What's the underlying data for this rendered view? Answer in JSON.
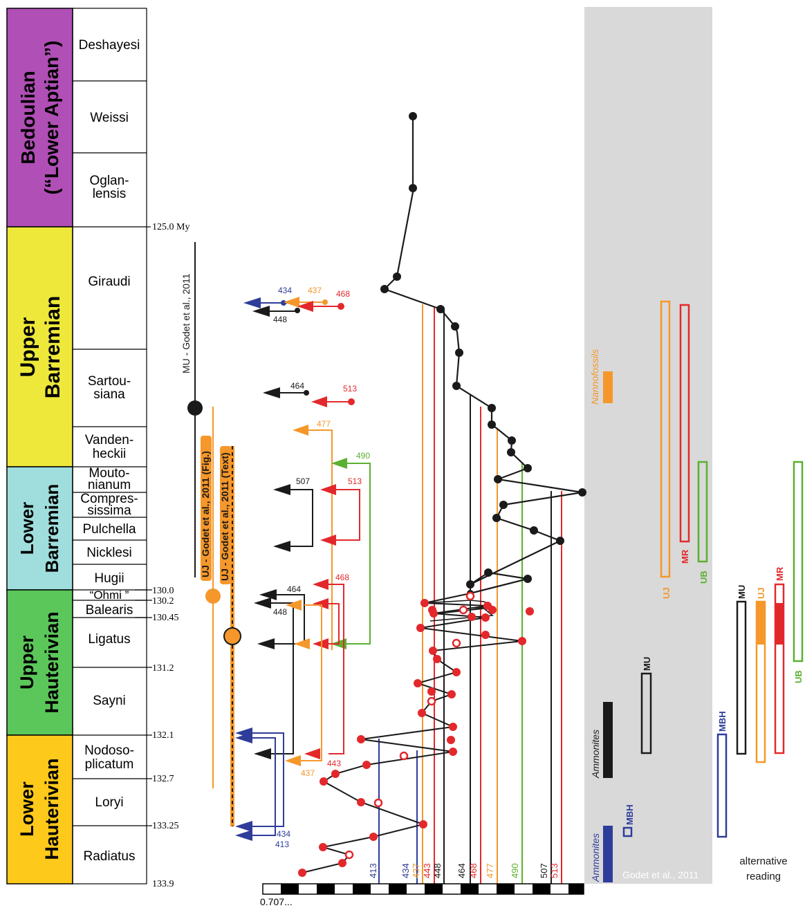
{
  "colors": {
    "black": "#1a1a1a",
    "red": "#e3282b",
    "orange": "#f5972a",
    "green": "#5ab030",
    "blue": "#2e3c9a",
    "purple": "#b04fb5",
    "yellow": "#ede83a",
    "cyan": "#9fdedc",
    "ltgreen": "#5bc65a",
    "gold": "#fdc91a",
    "gray": "#d9d9d9"
  },
  "stages": [
    {
      "label": "Bedoulian",
      "label2": "(“Lower Aptian”)"
    },
    {
      "label": "Upper",
      "label2": "Barremian"
    },
    {
      "label": "Lower",
      "label2": "Barremian"
    },
    {
      "label": "Upper",
      "label2": "Hauterivian"
    },
    {
      "label": "Lower",
      "label2": "Hauterivian"
    }
  ],
  "zones": [
    "Deshayesi",
    "Weissi",
    "Oglan-",
    "lensis",
    "Giraudi",
    "Sartou-",
    "siana",
    "Vanden-",
    "heckii",
    "Mouto-",
    "nianum",
    "Compres-",
    "sissima",
    "Pulchella",
    "Nicklesi",
    "Hugii",
    "“Ohmi ”",
    "Balearis",
    "Ligatus",
    "Sayni",
    "Nodoso-",
    "plicatum",
    "Loryi",
    "Radiatus"
  ],
  "ages": [
    "125.0 My",
    "130.0",
    "130.2",
    "130.45",
    "131.2",
    "132.1",
    "132.7",
    "133.25",
    "133.9"
  ],
  "mu_label": "MU - Godet et al., 2011",
  "uj_fig_label": "UJ - Godet et al., 2011 (Fig.)",
  "uj_text_label": "UJ - Godet et al., 2011 (Text)",
  "markers": [
    "434",
    "437",
    "468",
    "448",
    "464",
    "513",
    "477",
    "490",
    "507",
    "513",
    "464",
    "468",
    "448",
    "437",
    "443",
    "434",
    "413"
  ],
  "bottom_labels": [
    "413",
    "434",
    "437",
    "443",
    "448",
    "464",
    "468",
    "477",
    "490",
    "507",
    "513"
  ],
  "axis_label": "0.707...",
  "gray_labels": {
    "nanno": "Nannofossils",
    "ammo1": "Ammonites",
    "ammo2": "Ammonites",
    "mbh": "MBH",
    "mu": "MU",
    "source": "Godet et al., 2011"
  },
  "right_labels": {
    "uj": "UJ",
    "mr": "MR",
    "ub": "UB",
    "mbh": "MBH",
    "mu": "MU",
    "uj2": "UJ",
    "mr2": "MR",
    "ub2": "UB"
  },
  "alt": [
    "alternative",
    "reading"
  ]
}
